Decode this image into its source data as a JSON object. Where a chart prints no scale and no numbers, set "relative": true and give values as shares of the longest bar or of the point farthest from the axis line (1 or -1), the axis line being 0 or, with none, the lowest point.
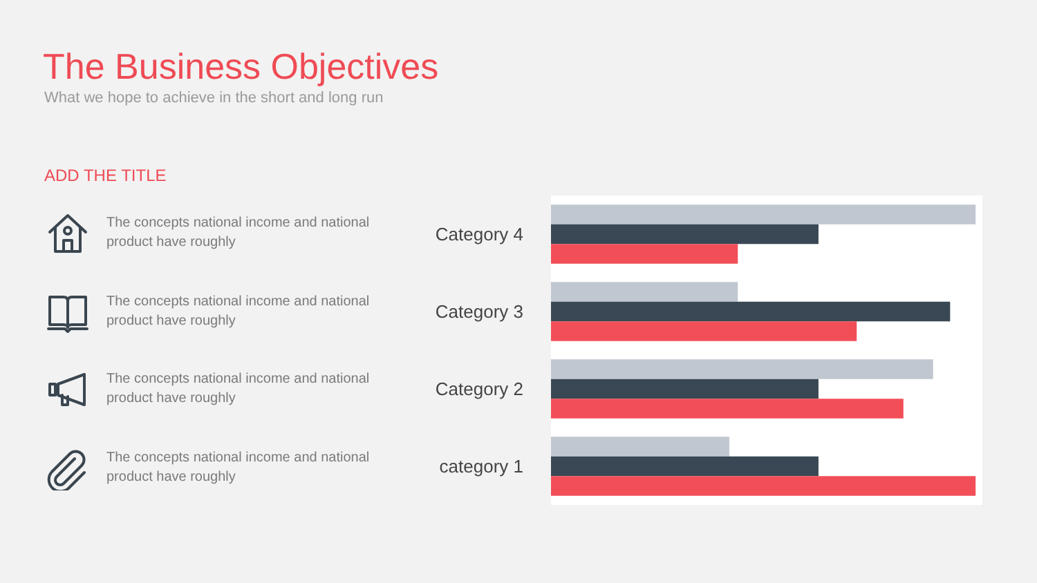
{
  "chart_data": {
    "type": "bar",
    "orientation": "horizontal",
    "relative": true,
    "title": "The Business Objectives",
    "subtitle": "What we hope to achieve in the short and long run",
    "categories": [
      "Category 4",
      "Category 3",
      "Category 2",
      "category 1"
    ],
    "series": [
      {
        "color": "#c1c7d0",
        "values": [
          1.0,
          0.44,
          0.9,
          0.42
        ]
      },
      {
        "color": "#394854",
        "values": [
          0.63,
          0.94,
          0.63,
          0.63
        ]
      },
      {
        "color": "#f24e58",
        "values": [
          0.44,
          0.72,
          0.83,
          1.0
        ]
      }
    ],
    "annotations": [
      "ADD THE TITLE",
      "The concepts national income and national product have roughly",
      "The concepts national income and national product have roughly",
      "The concepts national income and national product have roughly",
      "The concepts national income and national product have roughly"
    ]
  }
}
